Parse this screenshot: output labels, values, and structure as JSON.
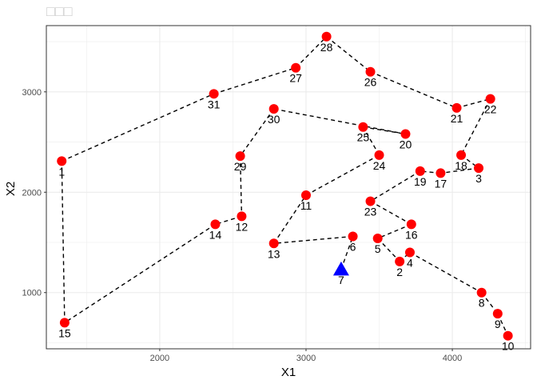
{
  "chart_data": {
    "type": "scatter",
    "title": "□□□",
    "xlabel": "X1",
    "ylabel": "X2",
    "xlim": [
      1225,
      4535
    ],
    "ylim": [
      440,
      3660
    ],
    "xticks": [
      2000,
      3000,
      4000
    ],
    "yticks": [
      1000,
      2000,
      3000
    ],
    "grid": true,
    "colors": {
      "point": "#ff0000",
      "start": "#0000ff",
      "path": "#000000",
      "grid": "#ebebeb",
      "border": "#333333"
    },
    "points": [
      {
        "label": "1",
        "x": 1330,
        "y": 2310
      },
      {
        "label": "2",
        "x": 3640,
        "y": 1310
      },
      {
        "label": "3",
        "x": 4180,
        "y": 2240
      },
      {
        "label": "4",
        "x": 3710,
        "y": 1400
      },
      {
        "label": "5",
        "x": 3490,
        "y": 1540
      },
      {
        "label": "6",
        "x": 3320,
        "y": 1560
      },
      {
        "label": "7",
        "x": 3240,
        "y": 1230
      },
      {
        "label": "8",
        "x": 4200,
        "y": 1000
      },
      {
        "label": "9",
        "x": 4310,
        "y": 790
      },
      {
        "label": "10",
        "x": 4380,
        "y": 570
      },
      {
        "label": "11",
        "x": 3000,
        "y": 1970
      },
      {
        "label": "12",
        "x": 2560,
        "y": 1760
      },
      {
        "label": "13",
        "x": 2780,
        "y": 1490
      },
      {
        "label": "14",
        "x": 2380,
        "y": 1680
      },
      {
        "label": "15",
        "x": 1350,
        "y": 700
      },
      {
        "label": "16",
        "x": 3720,
        "y": 1680
      },
      {
        "label": "17",
        "x": 3920,
        "y": 2190
      },
      {
        "label": "18",
        "x": 4060,
        "y": 2370
      },
      {
        "label": "19",
        "x": 3780,
        "y": 2210
      },
      {
        "label": "20",
        "x": 3680,
        "y": 2580
      },
      {
        "label": "21",
        "x": 4030,
        "y": 2840
      },
      {
        "label": "22",
        "x": 4260,
        "y": 2930
      },
      {
        "label": "23",
        "x": 3440,
        "y": 1910
      },
      {
        "label": "24",
        "x": 3500,
        "y": 2370
      },
      {
        "label": "25",
        "x": 3390,
        "y": 2650
      },
      {
        "label": "26",
        "x": 3440,
        "y": 3200
      },
      {
        "label": "27",
        "x": 2930,
        "y": 3240
      },
      {
        "label": "28",
        "x": 3140,
        "y": 3550
      },
      {
        "label": "29",
        "x": 2550,
        "y": 2360
      },
      {
        "label": "30",
        "x": 2780,
        "y": 2830
      },
      {
        "label": "31",
        "x": 2370,
        "y": 2980
      }
    ],
    "start": "7",
    "route": [
      "7",
      "6",
      "13",
      "11",
      "24",
      "25",
      "20",
      "30",
      "29",
      "12",
      "14",
      "15",
      "1",
      "31",
      "27",
      "28",
      "26",
      "21",
      "22",
      "18",
      "3",
      "17",
      "19",
      "23",
      "16",
      "5",
      "2",
      "4",
      "8",
      "9",
      "10"
    ]
  }
}
